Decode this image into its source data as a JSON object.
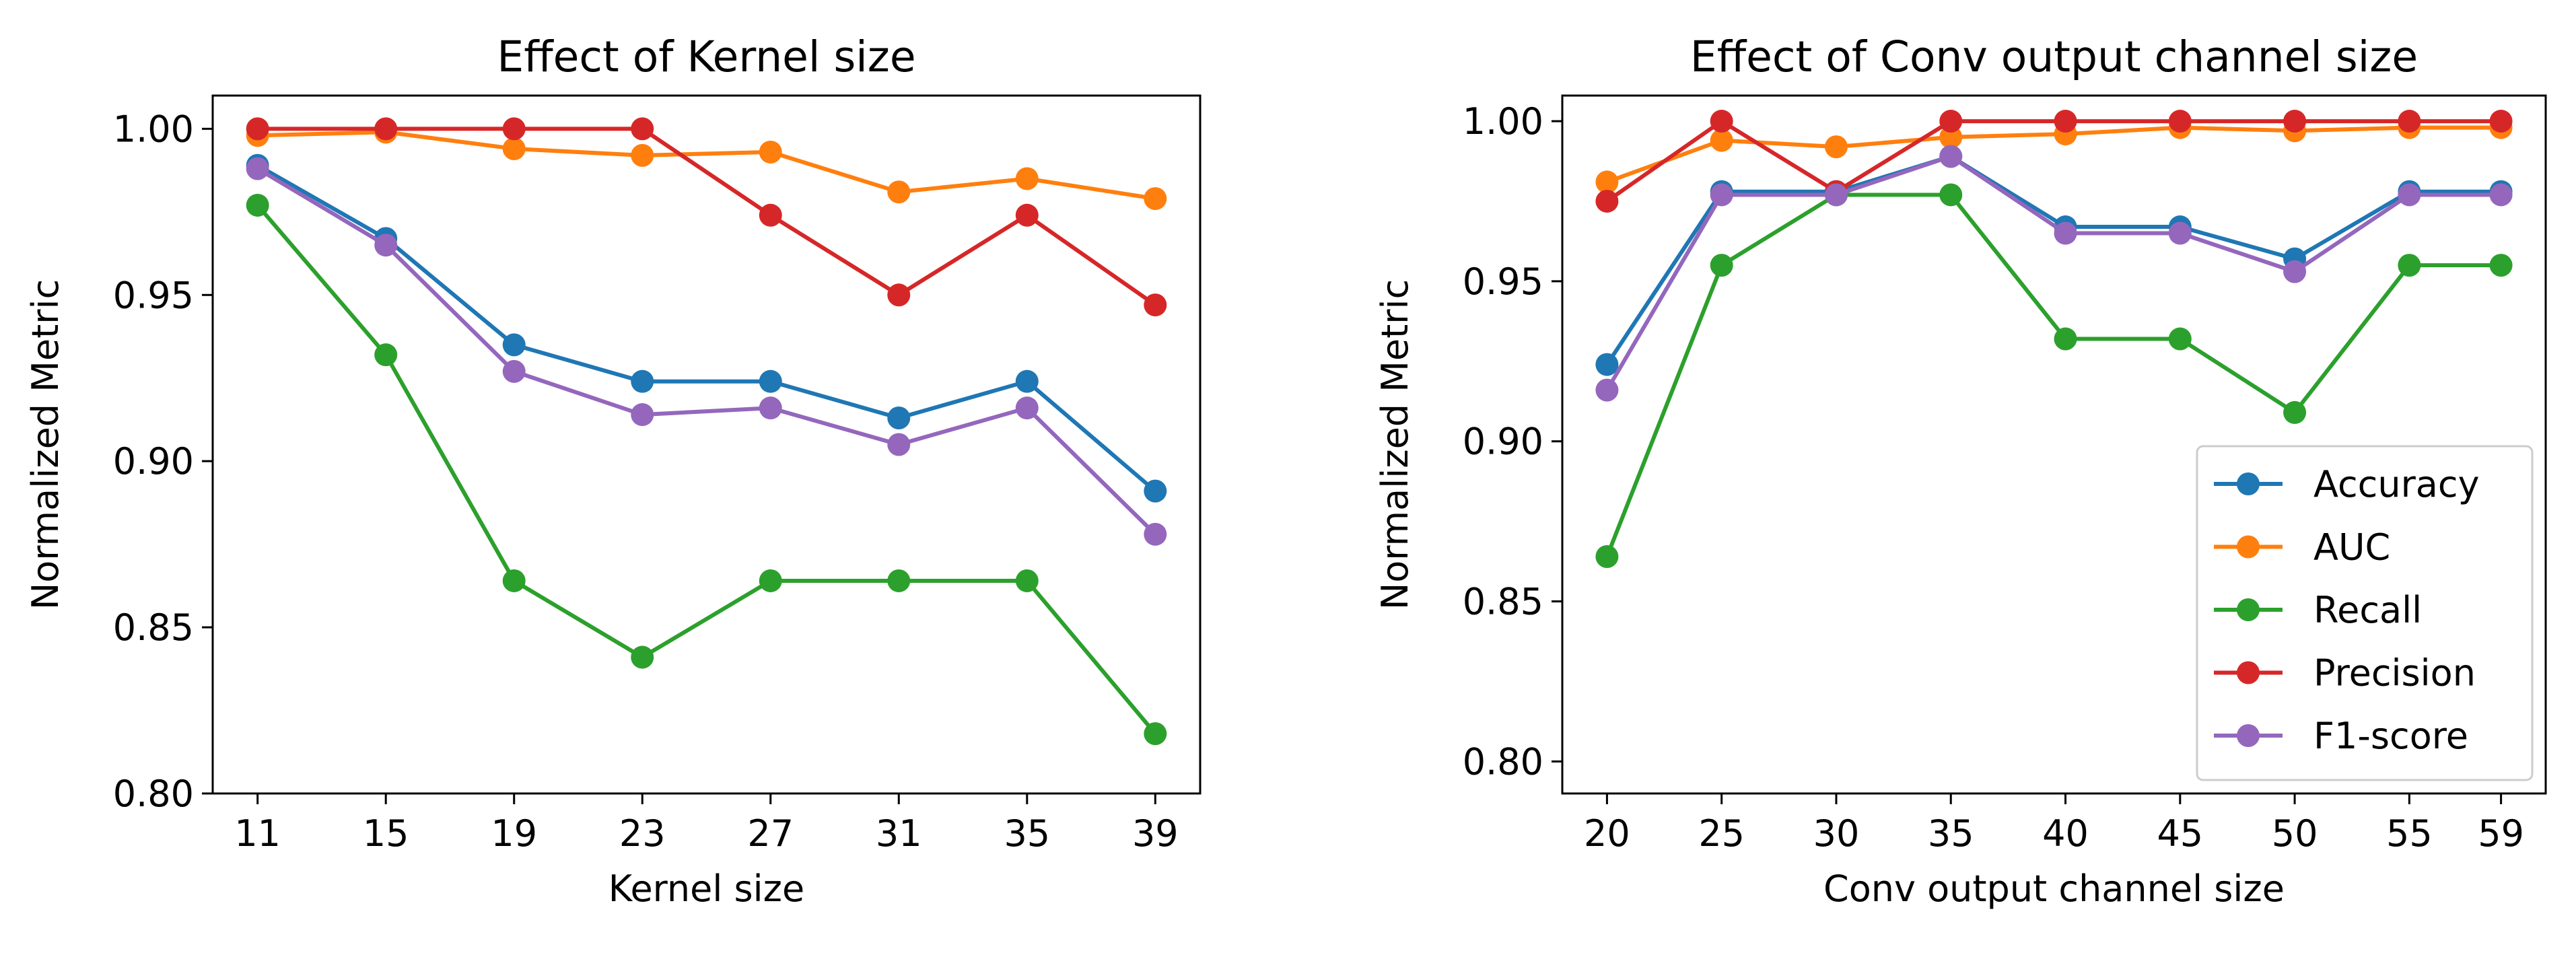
{
  "chart_data": [
    {
      "type": "line",
      "title": "Effect of Kernel size",
      "xlabel": "Kernel size",
      "ylabel": "Normalized Metric",
      "x": [
        11,
        15,
        19,
        23,
        27,
        31,
        35,
        39
      ],
      "xticks": [
        "11",
        "15",
        "19",
        "23",
        "27",
        "31",
        "35",
        "39"
      ],
      "xlim": [
        9.6,
        40.4
      ],
      "ylim": [
        0.8,
        1.01
      ],
      "yticks": [
        0.8,
        0.85,
        0.9,
        0.95,
        1.0
      ],
      "yticklabels": [
        "0.80",
        "0.85",
        "0.90",
        "0.95",
        "1.00"
      ],
      "grid": false,
      "legend": null,
      "series": [
        {
          "name": "Accuracy",
          "color": "#1f77b4",
          "values": [
            0.989,
            0.967,
            0.935,
            0.924,
            0.924,
            0.913,
            0.924,
            0.891
          ]
        },
        {
          "name": "AUC",
          "color": "#ff7f0e",
          "values": [
            0.998,
            0.999,
            0.994,
            0.992,
            0.993,
            0.981,
            0.985,
            0.979
          ]
        },
        {
          "name": "Recall",
          "color": "#2ca02c",
          "values": [
            0.977,
            0.932,
            0.864,
            0.841,
            0.864,
            0.864,
            0.864,
            0.818
          ]
        },
        {
          "name": "Precision",
          "color": "#d62728",
          "values": [
            1.0,
            1.0,
            1.0,
            1.0,
            0.974,
            0.95,
            0.974,
            0.947
          ]
        },
        {
          "name": "F1-score",
          "color": "#9467bd",
          "values": [
            0.988,
            0.965,
            0.927,
            0.914,
            0.916,
            0.905,
            0.916,
            0.878
          ]
        }
      ]
    },
    {
      "type": "line",
      "title": "Effect of Conv output channel size",
      "xlabel": "Conv output channel size",
      "ylabel": "Normalized Metric",
      "x": [
        20,
        25,
        30,
        35,
        40,
        45,
        50,
        55,
        59
      ],
      "xticks": [
        "20",
        "25",
        "30",
        "35",
        "40",
        "45",
        "50",
        "55",
        "59"
      ],
      "xlim": [
        18.05,
        60.95
      ],
      "ylim": [
        0.79,
        1.008
      ],
      "yticks": [
        0.8,
        0.85,
        0.9,
        0.95,
        1.0
      ],
      "yticklabels": [
        "0.80",
        "0.85",
        "0.90",
        "0.95",
        "1.00"
      ],
      "grid": false,
      "legend": "lower right",
      "series": [
        {
          "name": "Accuracy",
          "color": "#1f77b4",
          "values": [
            0.924,
            0.978,
            0.978,
            0.989,
            0.967,
            0.967,
            0.957,
            0.978,
            0.978
          ]
        },
        {
          "name": "AUC",
          "color": "#ff7f0e",
          "values": [
            0.981,
            0.994,
            0.992,
            0.995,
            0.996,
            0.998,
            0.997,
            0.998,
            0.998
          ]
        },
        {
          "name": "Recall",
          "color": "#2ca02c",
          "values": [
            0.864,
            0.955,
            0.977,
            0.977,
            0.932,
            0.932,
            0.909,
            0.955,
            0.955
          ]
        },
        {
          "name": "Precision",
          "color": "#d62728",
          "values": [
            0.975,
            1.0,
            0.978,
            1.0,
            1.0,
            1.0,
            1.0,
            1.0,
            1.0
          ]
        },
        {
          "name": "F1-score",
          "color": "#9467bd",
          "values": [
            0.916,
            0.977,
            0.977,
            0.989,
            0.965,
            0.965,
            0.953,
            0.977,
            0.977
          ]
        }
      ]
    }
  ]
}
